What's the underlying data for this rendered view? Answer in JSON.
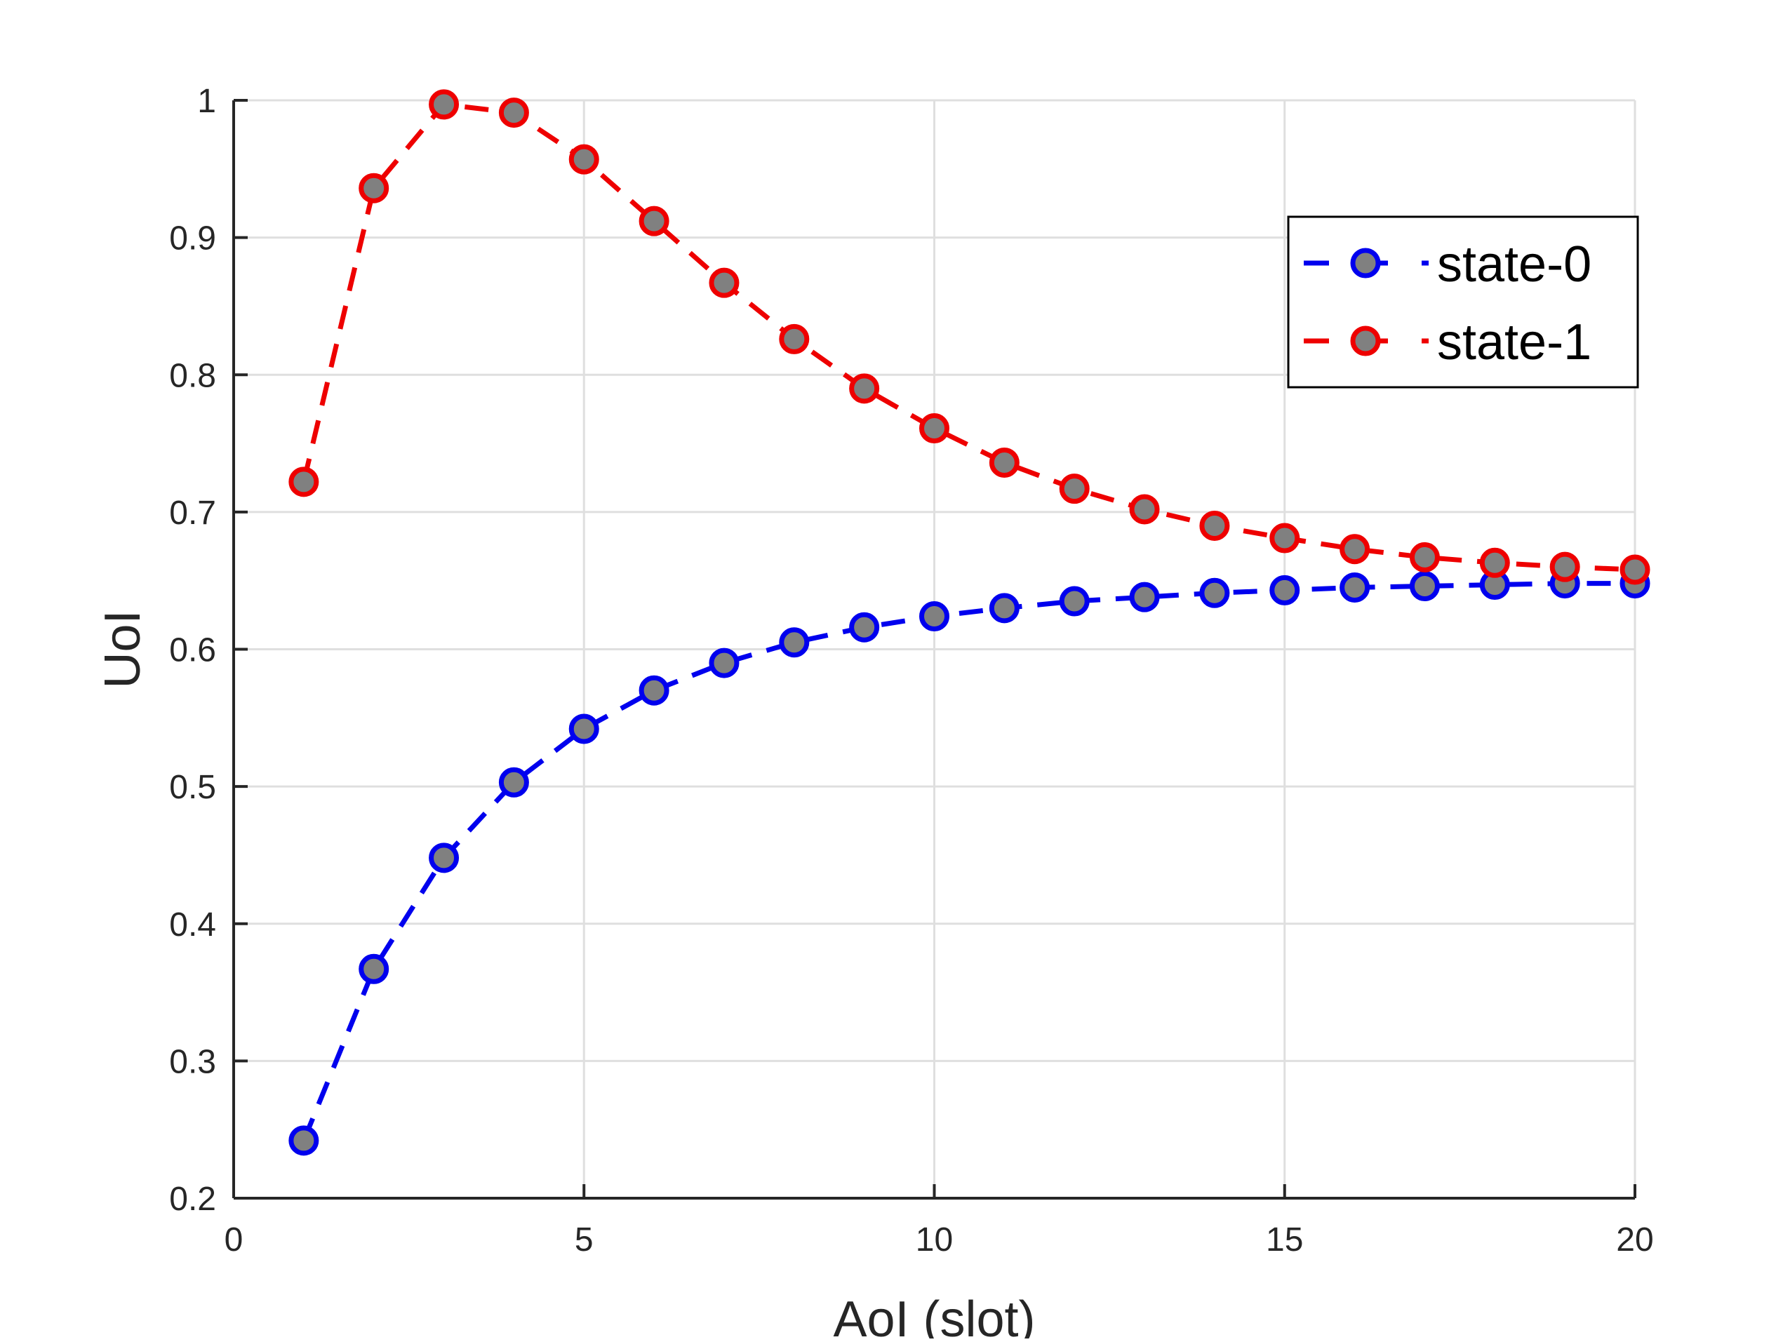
{
  "chart_data": {
    "type": "line",
    "title": "",
    "xlabel": "AoI (slot)",
    "ylabel": "UoI",
    "xlim": [
      0,
      20
    ],
    "ylim": [
      0.2,
      1
    ],
    "xticks": [
      0,
      5,
      10,
      15,
      20
    ],
    "yticks": [
      0.2,
      0.3,
      0.4,
      0.5,
      0.6,
      0.7,
      0.8,
      0.9,
      1
    ],
    "xtick_labels": [
      "0",
      "5",
      "10",
      "15",
      "20"
    ],
    "ytick_labels": [
      "0.2",
      "0.3",
      "0.4",
      "0.5",
      "0.6",
      "0.7",
      "0.8",
      "0.9",
      "1"
    ],
    "grid": true,
    "legend_position": "top-right",
    "x": [
      1,
      2,
      3,
      4,
      5,
      6,
      7,
      8,
      9,
      10,
      11,
      12,
      13,
      14,
      15,
      16,
      17,
      18,
      19,
      20
    ],
    "series": [
      {
        "name": "state-0",
        "color": "#0000ee",
        "marker_fill": "#808080",
        "line_style": "dashed",
        "values": [
          0.242,
          0.367,
          0.448,
          0.503,
          0.542,
          0.57,
          0.59,
          0.605,
          0.616,
          0.624,
          0.63,
          0.635,
          0.638,
          0.641,
          0.643,
          0.645,
          0.646,
          0.647,
          0.648,
          0.648
        ]
      },
      {
        "name": "state-1",
        "color": "#ee0000",
        "marker_fill": "#808080",
        "line_style": "dashed",
        "values": [
          0.722,
          0.936,
          0.997,
          0.991,
          0.957,
          0.912,
          0.867,
          0.826,
          0.79,
          0.761,
          0.736,
          0.717,
          0.702,
          0.69,
          0.681,
          0.673,
          0.667,
          0.663,
          0.66,
          0.658
        ]
      }
    ]
  }
}
